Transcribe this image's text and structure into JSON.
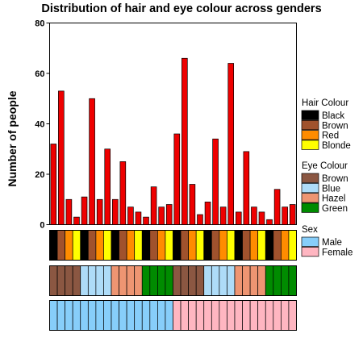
{
  "chart_data": {
    "type": "bar",
    "title": "Distribution of hair and eye colour across genders",
    "xlabel": "",
    "ylabel": "Number of people",
    "ylim": [
      0,
      80
    ],
    "yticks": [
      0,
      20,
      40,
      60,
      80
    ],
    "bar_color": "#ee0000",
    "grid": false,
    "legend_position": "right",
    "categories": [
      {
        "hair": "Black",
        "eye": "Brown",
        "sex": "Male"
      },
      {
        "hair": "Brown",
        "eye": "Brown",
        "sex": "Male"
      },
      {
        "hair": "Red",
        "eye": "Brown",
        "sex": "Male"
      },
      {
        "hair": "Blonde",
        "eye": "Brown",
        "sex": "Male"
      },
      {
        "hair": "Black",
        "eye": "Blue",
        "sex": "Male"
      },
      {
        "hair": "Brown",
        "eye": "Blue",
        "sex": "Male"
      },
      {
        "hair": "Red",
        "eye": "Blue",
        "sex": "Male"
      },
      {
        "hair": "Blonde",
        "eye": "Blue",
        "sex": "Male"
      },
      {
        "hair": "Black",
        "eye": "Hazel",
        "sex": "Male"
      },
      {
        "hair": "Brown",
        "eye": "Hazel",
        "sex": "Male"
      },
      {
        "hair": "Red",
        "eye": "Hazel",
        "sex": "Male"
      },
      {
        "hair": "Blonde",
        "eye": "Hazel",
        "sex": "Male"
      },
      {
        "hair": "Black",
        "eye": "Green",
        "sex": "Male"
      },
      {
        "hair": "Brown",
        "eye": "Green",
        "sex": "Male"
      },
      {
        "hair": "Red",
        "eye": "Green",
        "sex": "Male"
      },
      {
        "hair": "Blonde",
        "eye": "Green",
        "sex": "Male"
      },
      {
        "hair": "Black",
        "eye": "Brown",
        "sex": "Female"
      },
      {
        "hair": "Brown",
        "eye": "Brown",
        "sex": "Female"
      },
      {
        "hair": "Red",
        "eye": "Brown",
        "sex": "Female"
      },
      {
        "hair": "Blonde",
        "eye": "Brown",
        "sex": "Female"
      },
      {
        "hair": "Black",
        "eye": "Blue",
        "sex": "Female"
      },
      {
        "hair": "Brown",
        "eye": "Blue",
        "sex": "Female"
      },
      {
        "hair": "Red",
        "eye": "Blue",
        "sex": "Female"
      },
      {
        "hair": "Blonde",
        "eye": "Blue",
        "sex": "Female"
      },
      {
        "hair": "Black",
        "eye": "Hazel",
        "sex": "Female"
      },
      {
        "hair": "Brown",
        "eye": "Hazel",
        "sex": "Female"
      },
      {
        "hair": "Red",
        "eye": "Hazel",
        "sex": "Female"
      },
      {
        "hair": "Blonde",
        "eye": "Hazel",
        "sex": "Female"
      },
      {
        "hair": "Black",
        "eye": "Green",
        "sex": "Female"
      },
      {
        "hair": "Brown",
        "eye": "Green",
        "sex": "Female"
      },
      {
        "hair": "Red",
        "eye": "Green",
        "sex": "Female"
      },
      {
        "hair": "Blonde",
        "eye": "Green",
        "sex": "Female"
      }
    ],
    "values": [
      32,
      53,
      10,
      3,
      11,
      50,
      10,
      30,
      10,
      25,
      7,
      5,
      3,
      15,
      7,
      8,
      36,
      66,
      16,
      4,
      9,
      34,
      7,
      64,
      5,
      29,
      7,
      5,
      2,
      14,
      7,
      8
    ],
    "legends": [
      {
        "key": "hair",
        "title": "Hair Colour",
        "items": [
          {
            "label": "Black",
            "color": "#000000"
          },
          {
            "label": "Brown",
            "color": "#a0522d"
          },
          {
            "label": "Red",
            "color": "#ff8c00"
          },
          {
            "label": "Blonde",
            "color": "#ffff00"
          }
        ]
      },
      {
        "key": "eye",
        "title": "Eye Colour",
        "items": [
          {
            "label": "Brown",
            "color": "#8b5742"
          },
          {
            "label": "Blue",
            "color": "#aedcf8"
          },
          {
            "label": "Hazel",
            "color": "#ee9572"
          },
          {
            "label": "Green",
            "color": "#008b00"
          }
        ]
      },
      {
        "key": "sex",
        "title": "Sex",
        "items": [
          {
            "label": "Male",
            "color": "#87cefa"
          },
          {
            "label": "Female",
            "color": "#ffb6c1"
          }
        ]
      }
    ]
  }
}
